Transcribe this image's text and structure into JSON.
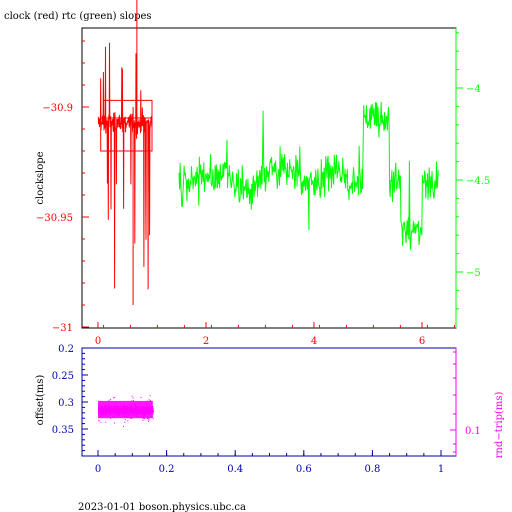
{
  "title": "clock (red) rtc (green) slopes",
  "footer": "2023-01-01 boson.physics.ubc.ca",
  "colors": {
    "clock": "#ff0000",
    "rtc": "#00ff00",
    "offset": "#ff00ff",
    "axis_bottom": "#0000aa",
    "frame": "#000000"
  },
  "chart_data": [
    {
      "type": "line",
      "ylabel": "clockslope",
      "ylabel_right": "",
      "xlim": [
        -0.3,
        6.6
      ],
      "ylim": [
        -31.0,
        -30.8
      ],
      "ylim_right": [
        -5.0,
        -4.0
      ],
      "x_ticks": [
        0,
        2,
        4,
        6
      ],
      "y_ticks": [
        -30.9,
        -30.95,
        -31
      ],
      "y_tick_labels": [
        "−30.9",
        "−30.95",
        "−31"
      ],
      "y_ticks_right": [
        -4,
        -4.5,
        -5
      ],
      "y_tick_labels_right": [
        "−4",
        "−4.5",
        "−5"
      ],
      "series": [
        {
          "name": "clock",
          "color": "#ff0000",
          "axis": "left",
          "x_range": [
            0.0,
            1.0
          ],
          "y_center": -30.907,
          "y_band": [
            -30.915,
            -30.895
          ],
          "y_min": -30.99,
          "y_max": -30.85
        },
        {
          "name": "rtc",
          "color": "#00ff00",
          "axis": "right",
          "x_range": [
            1.5,
            6.3
          ],
          "y_center": -4.5,
          "y_range": [
            -5.1,
            -3.8
          ]
        }
      ]
    },
    {
      "type": "scatter",
      "ylabel": "offset(ms)",
      "ylabel_right": "rnd−trip(ms)",
      "xlim": [
        -0.05,
        1.03
      ],
      "ylim": [
        0.2,
        0.4
      ],
      "x_ticks": [
        0,
        0.2,
        0.4,
        0.6,
        0.8,
        1
      ],
      "x_tick_labels": [
        "0",
        "0.2",
        "0.4",
        "0.6",
        "0.8",
        "1"
      ],
      "y_ticks": [
        0.2,
        0.25,
        0.3,
        0.35
      ],
      "y_tick_labels": [
        "0.2",
        "0.25",
        "0.3",
        "0.35"
      ],
      "y_ticks_right": [
        0.1
      ],
      "y_tick_labels_right": [
        "0.1"
      ],
      "series": [
        {
          "name": "offset",
          "color": "#ff00ff",
          "x_range": [
            0.0,
            0.16
          ],
          "y_center": 0.315,
          "y_band": [
            0.295,
            0.335
          ]
        }
      ]
    }
  ]
}
